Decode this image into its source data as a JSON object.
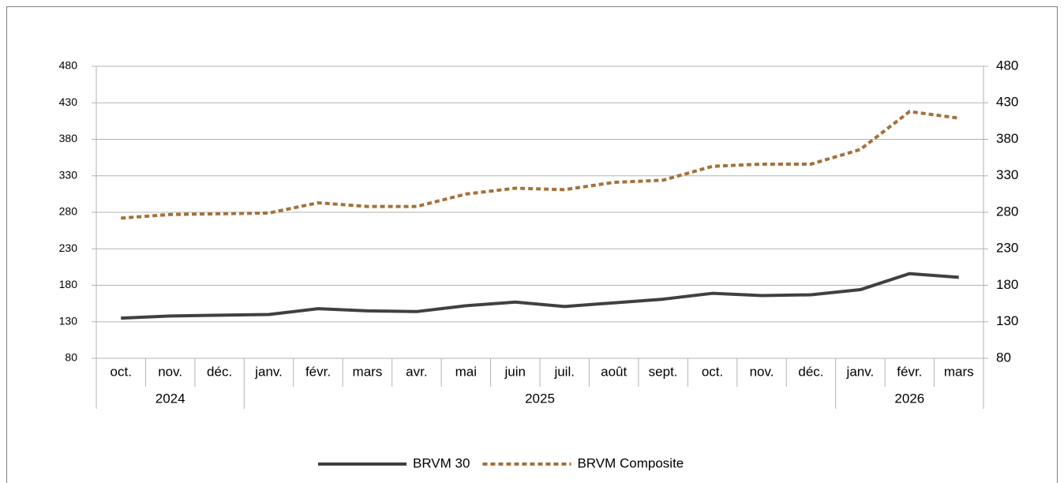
{
  "chart_data": {
    "type": "line",
    "categories": [
      "oct.",
      "nov.",
      "déc.",
      "janv.",
      "févr.",
      "mars",
      "avr.",
      "mai",
      "juin",
      "juil.",
      "août",
      "sept.",
      "oct.",
      "nov.",
      "déc.",
      "janv.",
      "févr.",
      "mars"
    ],
    "year_groups": [
      {
        "label": "2024",
        "count": 3
      },
      {
        "label": "2025",
        "count": 12
      },
      {
        "label": "2026",
        "count": 3
      }
    ],
    "series": [
      {
        "name": "BRVM 30",
        "color": "#404040",
        "dash": "solid",
        "axis": "y",
        "values": [
          135,
          138,
          139,
          140,
          148,
          145,
          144,
          152,
          157,
          151,
          156,
          161,
          169,
          166,
          167,
          174,
          196,
          191
        ]
      },
      {
        "name": "BRVM Composite",
        "color": "#a5703a",
        "dash": "dashed",
        "axis": "y2",
        "values": [
          272,
          277,
          278,
          279,
          293,
          288,
          288,
          305,
          313,
          311,
          321,
          324,
          343,
          346,
          346,
          366,
          418,
          409
        ]
      }
    ],
    "ylim": [
      80,
      480
    ],
    "yticks": [
      80,
      130,
      180,
      230,
      280,
      330,
      380,
      430,
      480
    ],
    "y2lim": [
      80,
      480
    ],
    "y2ticks": [
      80,
      130,
      180,
      230,
      280,
      330,
      380,
      430,
      480
    ],
    "grid": true,
    "legend": "bottom"
  }
}
